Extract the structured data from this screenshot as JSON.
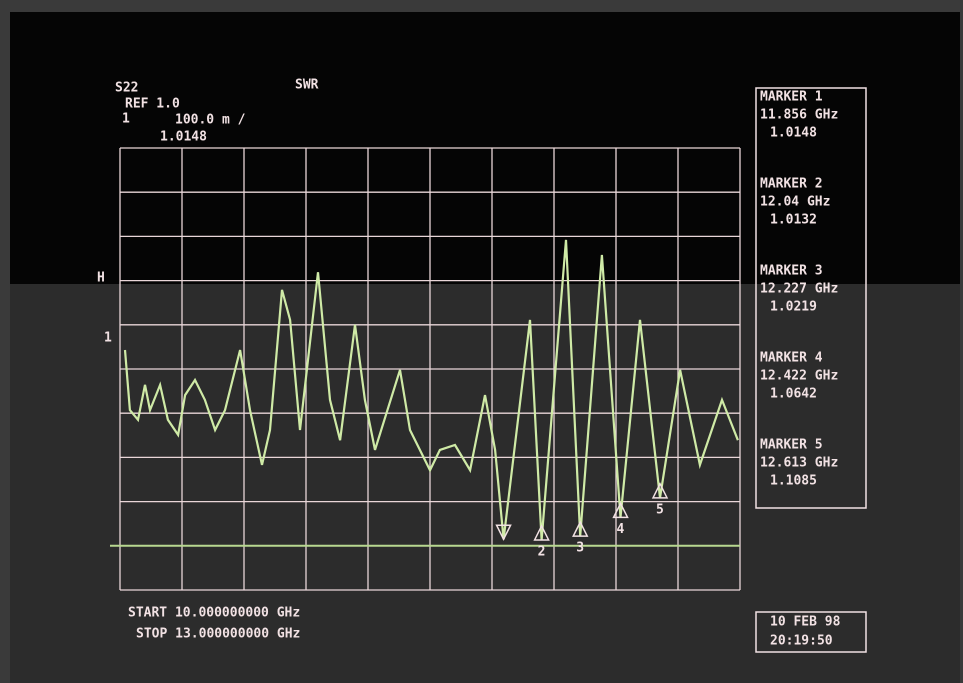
{
  "chart_data": {
    "type": "line",
    "parameter": "S22",
    "format": "SWR",
    "ref": {
      "value": 1.0,
      "label": "REF 1.0"
    },
    "scale": "100.0 m /",
    "active_marker_number": "1",
    "active_marker_value": "1.0148",
    "channel_label": "H",
    "ref_position_label": "1",
    "xlim": [
      10,
      13
    ],
    "ylim": [
      0.9,
      1.9
    ],
    "color": "#cfeaa6",
    "x": [
      10.024,
      10.048,
      10.087,
      10.121,
      10.145,
      10.194,
      10.232,
      10.281,
      10.315,
      10.363,
      10.411,
      10.46,
      10.508,
      10.581,
      10.629,
      10.687,
      10.726,
      10.784,
      10.823,
      10.871,
      10.958,
      11.016,
      11.065,
      11.137,
      11.185,
      11.234,
      11.355,
      11.403,
      11.5,
      11.548,
      11.621,
      11.694,
      11.766,
      11.815,
      11.856,
      11.984,
      12.04,
      12.158,
      12.227,
      12.332,
      12.422,
      12.516,
      12.613,
      12.71,
      12.806,
      12.913,
      12.99
    ],
    "values": [
      1.443,
      1.307,
      1.285,
      1.364,
      1.307,
      1.364,
      1.285,
      1.251,
      1.341,
      1.375,
      1.33,
      1.262,
      1.307,
      1.443,
      1.307,
      1.183,
      1.262,
      1.579,
      1.511,
      1.262,
      1.619,
      1.33,
      1.239,
      1.5,
      1.33,
      1.217,
      1.398,
      1.262,
      1.171,
      1.217,
      1.228,
      1.171,
      1.341,
      1.217,
      1.0148,
      1.511,
      1.0132,
      1.692,
      1.0219,
      1.658,
      1.0642,
      1.511,
      1.1085,
      1.398,
      1.183,
      1.33,
      1.239
    ],
    "markers": [
      {
        "title": "MARKER 1",
        "frequency": {
          "value": 11.856,
          "label": "11.856 GHz"
        },
        "value": 1.0148,
        "number": "1"
      },
      {
        "title": "MARKER 2",
        "frequency": {
          "value": 12.04,
          "label": "12.04 GHz"
        },
        "value": 1.0132,
        "number": "2"
      },
      {
        "title": "MARKER 3",
        "frequency": {
          "value": 12.227,
          "label": "12.227 GHz"
        },
        "value": 1.0219,
        "number": "3"
      },
      {
        "title": "MARKER 4",
        "frequency": {
          "value": 12.422,
          "label": "12.422 GHz"
        },
        "value": 1.0642,
        "number": "4"
      },
      {
        "title": "MARKER 5",
        "frequency": {
          "value": 12.613,
          "label": "12.613 GHz"
        },
        "value": 1.1085,
        "number": "5"
      }
    ],
    "start": "START 10.000000000 GHz",
    "stop": "STOP 13.000000000 GHz",
    "date": "10 FEB 98",
    "time": "20:19:50"
  }
}
